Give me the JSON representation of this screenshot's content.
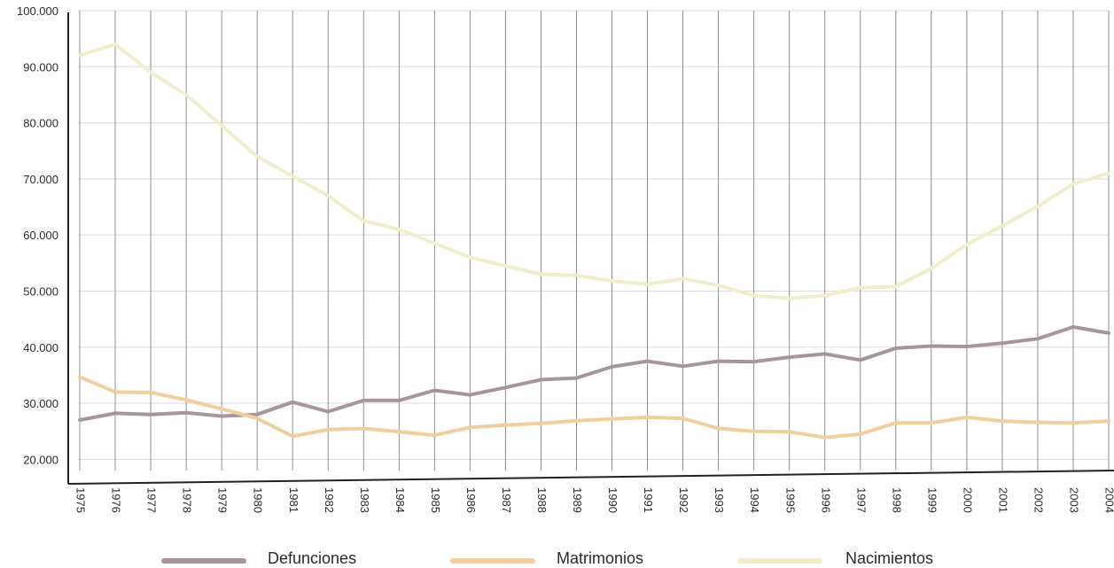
{
  "chart_data": {
    "type": "line",
    "title": "",
    "xlabel": "",
    "ylabel": "",
    "categories": [
      "1975",
      "1976",
      "1977",
      "1978",
      "1979",
      "1980",
      "1981",
      "1982",
      "1983",
      "1984",
      "1985",
      "1986",
      "1987",
      "1988",
      "1989",
      "1990",
      "1991",
      "1992",
      "1993",
      "1994",
      "1995",
      "1996",
      "1997",
      "1998",
      "1999",
      "2000",
      "2001",
      "2002",
      "2003",
      "2004"
    ],
    "ylim": [
      18000,
      100000
    ],
    "yticks": [
      20000,
      30000,
      40000,
      50000,
      60000,
      70000,
      80000,
      90000,
      100000
    ],
    "ytick_labels": [
      "20.000",
      "30.000",
      "40.000",
      "50.000",
      "60.000",
      "70.000",
      "80.000",
      "90.000",
      "100.000"
    ],
    "grid": true,
    "legend_position": "bottom",
    "series": [
      {
        "name": "Defunciones",
        "color": "#a8949f",
        "values": [
          27000,
          28200,
          28000,
          28300,
          27700,
          28000,
          30200,
          28500,
          30500,
          30500,
          32300,
          31500,
          32800,
          34200,
          34500,
          36500,
          37500,
          36600,
          37500,
          37400,
          38200,
          38800,
          37700,
          39800,
          40200,
          40100,
          40700,
          41500,
          43600,
          42500
        ]
      },
      {
        "name": "Matrimonios",
        "color": "#efcf9e",
        "values": [
          34700,
          32000,
          31900,
          30600,
          29000,
          27300,
          24100,
          25300,
          25500,
          24900,
          24300,
          25700,
          26100,
          26400,
          26900,
          27200,
          27500,
          27300,
          25500,
          25000,
          24900,
          23900,
          24500,
          26500,
          26500,
          27500,
          26800,
          26600,
          26500,
          26800
        ]
      },
      {
        "name": "Nacimientos",
        "color": "#f1eecb",
        "values": [
          92000,
          94000,
          89000,
          85000,
          79500,
          74000,
          70500,
          67000,
          62500,
          61000,
          58500,
          56000,
          54500,
          53000,
          52800,
          51800,
          51200,
          52200,
          51000,
          49200,
          48700,
          49200,
          50600,
          50800,
          54000,
          58300,
          61600,
          65100,
          69100,
          71000
        ]
      }
    ]
  }
}
